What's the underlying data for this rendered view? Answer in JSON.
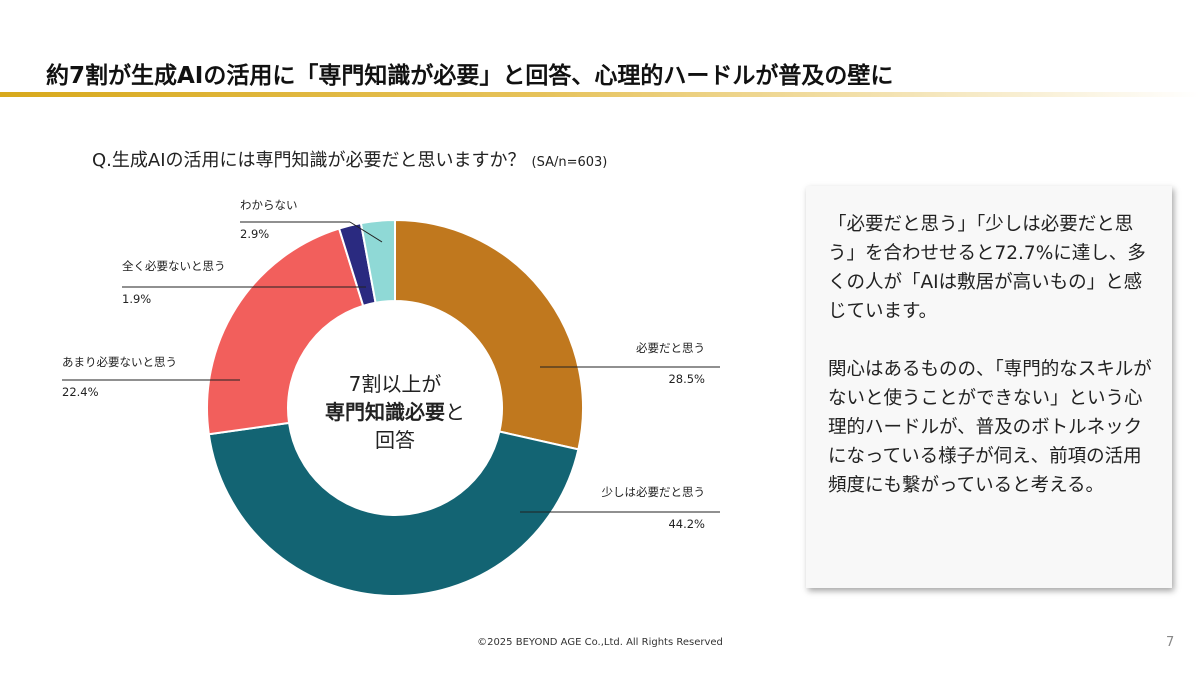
{
  "chart_data": {
    "type": "donut",
    "title": "約7割が生成AIの活用に「専門知識が必要」と回答、心理的ハードルが普及の壁に",
    "subtitle": "Q.生成AIの活用には専門知識が必要だと思いますか？",
    "note": "(SA/n=603)",
    "categories": [
      "必要だと思う",
      "少しは必要だと思う",
      "あまり必要ないと思う",
      "全く必要ないと思う",
      "わからない"
    ],
    "values": [
      28.5,
      44.2,
      22.4,
      1.9,
      2.9
    ],
    "value_labels": [
      "28.5%",
      "44.2%",
      "22.4%",
      "1.9%",
      "2.9%"
    ],
    "colors": [
      "#c0781e",
      "#136473",
      "#f25f5c",
      "#2a2a80",
      "#8fd9d6"
    ],
    "center_text": [
      "7割以上が",
      "専門知識必要",
      "と",
      "回答"
    ]
  },
  "commentary": [
    "「必要だと思う」「少しは必要だと思う」を合わせせると72.7%に達し、多くの人が「AIは敷居が高いもの」と感じています。",
    "関心はあるものの、「専門的なスキルがないと使うことができない」という心理的ハードルが、普及のボトルネックになっている様子が伺え、前項の活用頻度にも繋がっていると考える。"
  ],
  "footer": {
    "copyright": "©2025 BEYOND AGE Co.,Ltd. All Rights Reserved",
    "page": "7"
  }
}
